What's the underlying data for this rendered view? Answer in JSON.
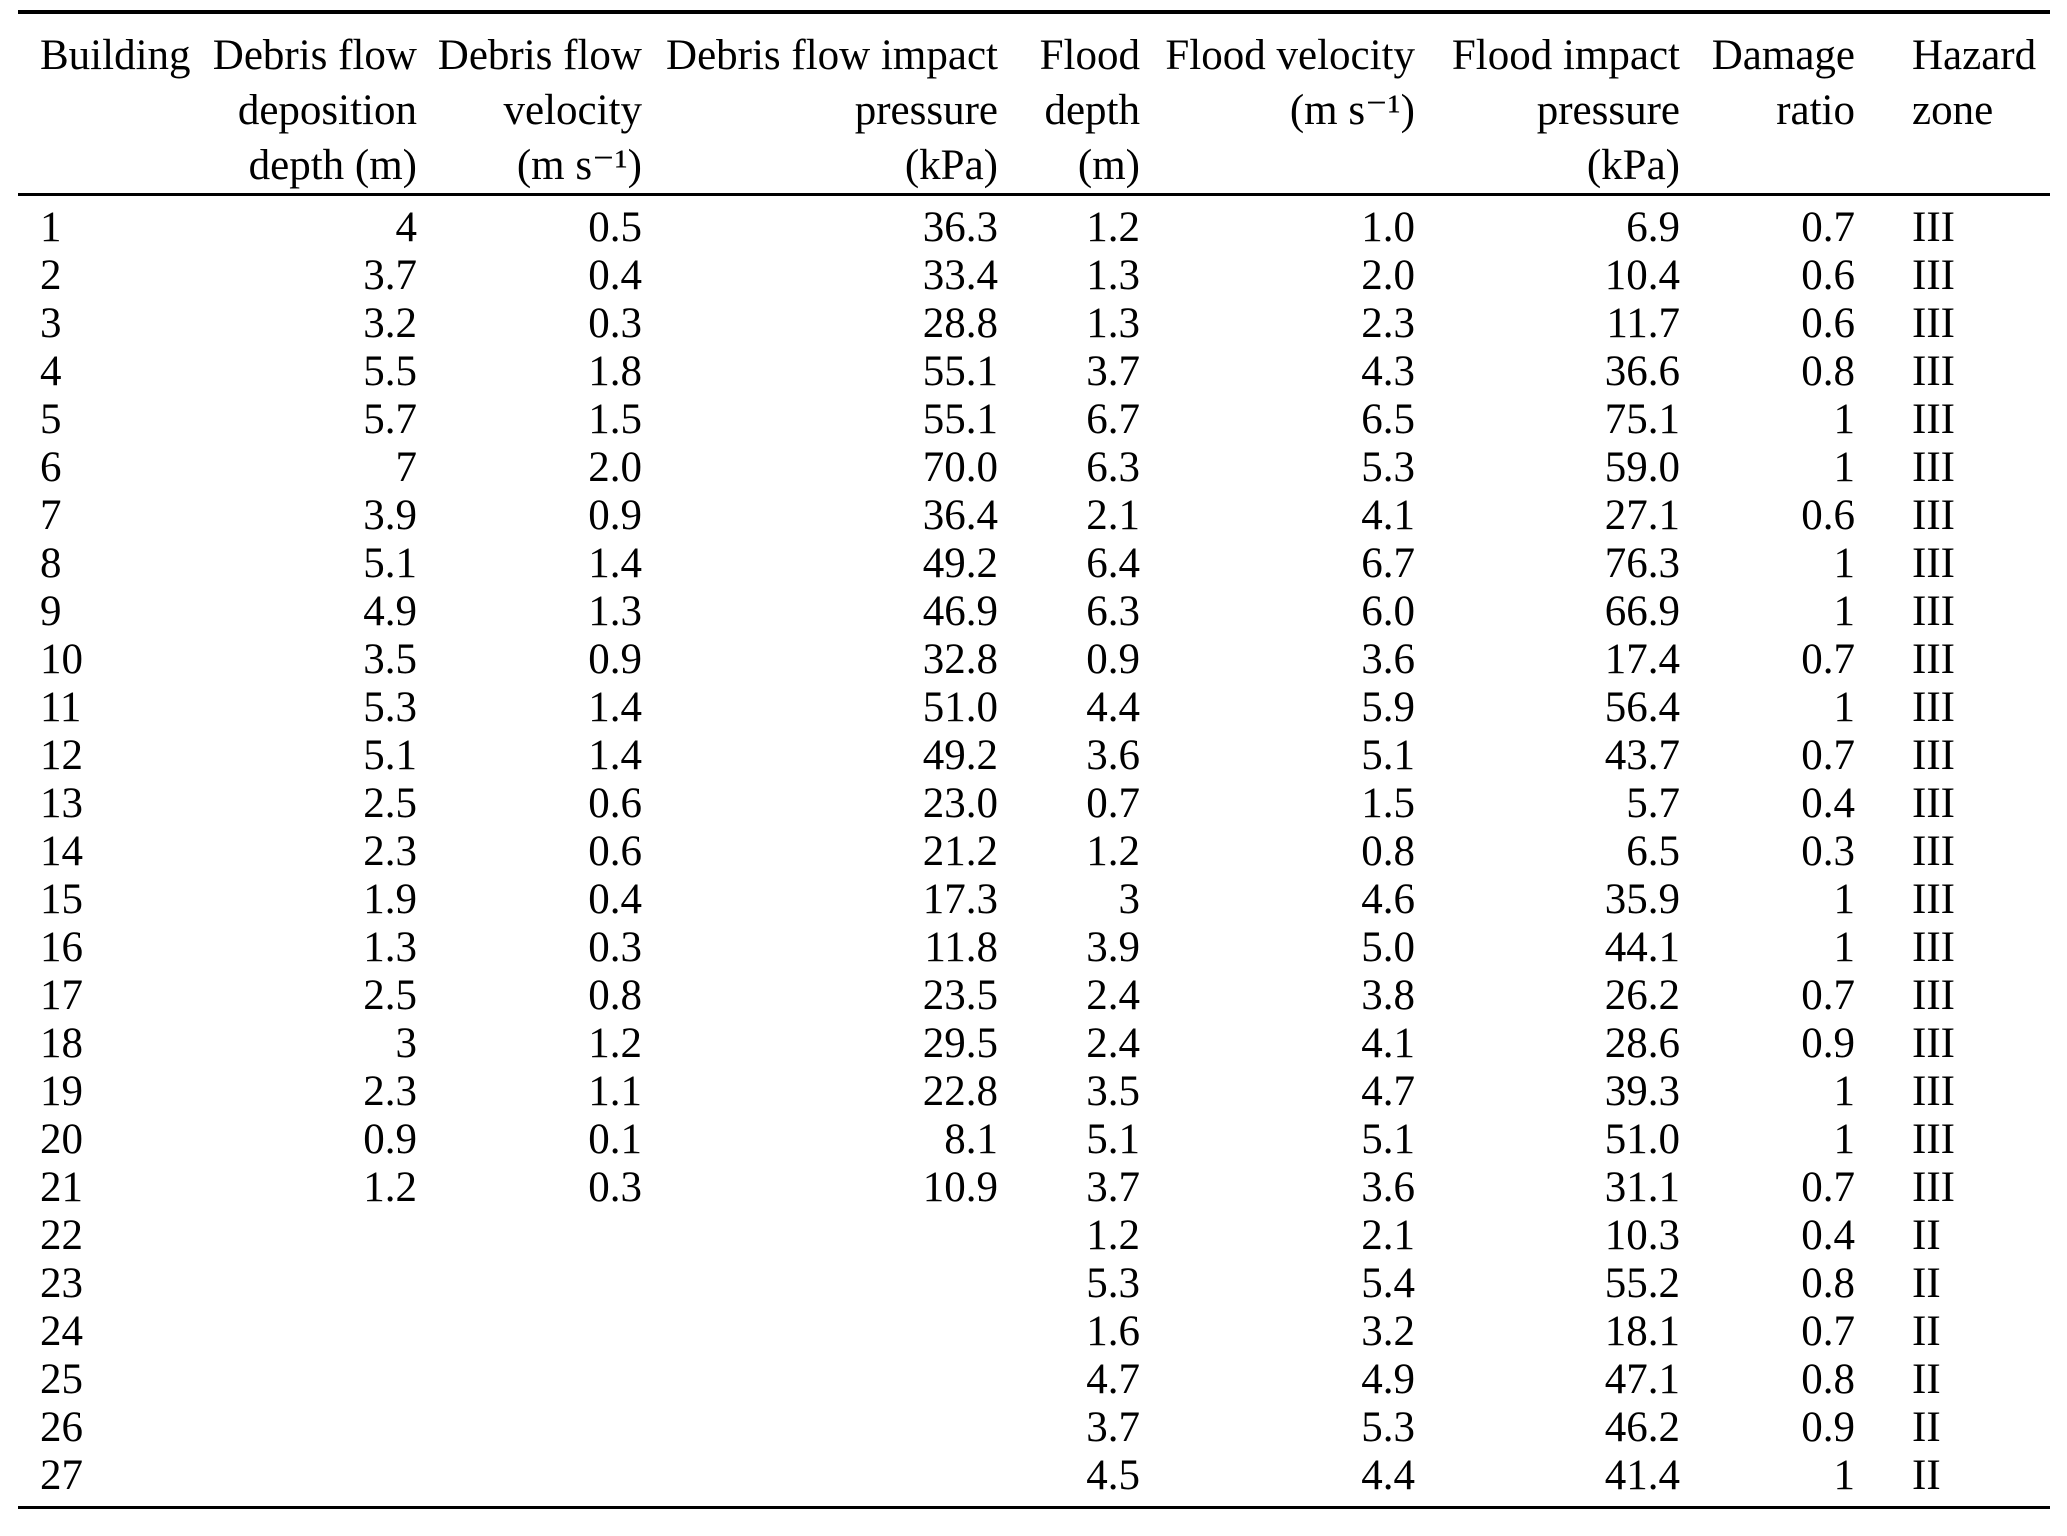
{
  "table": {
    "header": [
      {
        "align": "left",
        "lines": [
          "Building"
        ]
      },
      {
        "align": "right",
        "lines": [
          "Debris flow",
          "deposition",
          "depth (m)"
        ]
      },
      {
        "align": "right",
        "lines": [
          "Debris flow",
          "velocity",
          "(m s⁻¹)"
        ]
      },
      {
        "align": "right",
        "lines": [
          "Debris flow impact",
          "pressure",
          "(kPa)"
        ]
      },
      {
        "align": "right",
        "lines": [
          "Flood",
          "depth",
          "(m)"
        ]
      },
      {
        "align": "right",
        "lines": [
          "Flood velocity",
          "(m s⁻¹)"
        ]
      },
      {
        "align": "right",
        "lines": [
          "Flood impact",
          "pressure",
          "(kPa)"
        ]
      },
      {
        "align": "right",
        "lines": [
          "Damage",
          "ratio"
        ]
      },
      {
        "align": "left",
        "lines": [
          "Hazard",
          "zone"
        ]
      }
    ],
    "column_keys": [
      "building",
      "debris_flow_deposition_depth_m",
      "debris_flow_velocity_ms",
      "debris_flow_impact_pressure_kpa",
      "flood_depth_m",
      "flood_velocity_ms",
      "flood_impact_pressure_kpa",
      "damage_ratio",
      "hazard_zone"
    ],
    "rows": [
      [
        "1",
        "4",
        "0.5",
        "36.3",
        "1.2",
        "1.0",
        "6.9",
        "0.7",
        "III"
      ],
      [
        "2",
        "3.7",
        "0.4",
        "33.4",
        "1.3",
        "2.0",
        "10.4",
        "0.6",
        "III"
      ],
      [
        "3",
        "3.2",
        "0.3",
        "28.8",
        "1.3",
        "2.3",
        "11.7",
        "0.6",
        "III"
      ],
      [
        "4",
        "5.5",
        "1.8",
        "55.1",
        "3.7",
        "4.3",
        "36.6",
        "0.8",
        "III"
      ],
      [
        "5",
        "5.7",
        "1.5",
        "55.1",
        "6.7",
        "6.5",
        "75.1",
        "1",
        "III"
      ],
      [
        "6",
        "7",
        "2.0",
        "70.0",
        "6.3",
        "5.3",
        "59.0",
        "1",
        "III"
      ],
      [
        "7",
        "3.9",
        "0.9",
        "36.4",
        "2.1",
        "4.1",
        "27.1",
        "0.6",
        "III"
      ],
      [
        "8",
        "5.1",
        "1.4",
        "49.2",
        "6.4",
        "6.7",
        "76.3",
        "1",
        "III"
      ],
      [
        "9",
        "4.9",
        "1.3",
        "46.9",
        "6.3",
        "6.0",
        "66.9",
        "1",
        "III"
      ],
      [
        "10",
        "3.5",
        "0.9",
        "32.8",
        "0.9",
        "3.6",
        "17.4",
        "0.7",
        "III"
      ],
      [
        "11",
        "5.3",
        "1.4",
        "51.0",
        "4.4",
        "5.9",
        "56.4",
        "1",
        "III"
      ],
      [
        "12",
        "5.1",
        "1.4",
        "49.2",
        "3.6",
        "5.1",
        "43.7",
        "0.7",
        "III"
      ],
      [
        "13",
        "2.5",
        "0.6",
        "23.0",
        "0.7",
        "1.5",
        "5.7",
        "0.4",
        "III"
      ],
      [
        "14",
        "2.3",
        "0.6",
        "21.2",
        "1.2",
        "0.8",
        "6.5",
        "0.3",
        "III"
      ],
      [
        "15",
        "1.9",
        "0.4",
        "17.3",
        "3",
        "4.6",
        "35.9",
        "1",
        "III"
      ],
      [
        "16",
        "1.3",
        "0.3",
        "11.8",
        "3.9",
        "5.0",
        "44.1",
        "1",
        "III"
      ],
      [
        "17",
        "2.5",
        "0.8",
        "23.5",
        "2.4",
        "3.8",
        "26.2",
        "0.7",
        "III"
      ],
      [
        "18",
        "3",
        "1.2",
        "29.5",
        "2.4",
        "4.1",
        "28.6",
        "0.9",
        "III"
      ],
      [
        "19",
        "2.3",
        "1.1",
        "22.8",
        "3.5",
        "4.7",
        "39.3",
        "1",
        "III"
      ],
      [
        "20",
        "0.9",
        "0.1",
        "8.1",
        "5.1",
        "5.1",
        "51.0",
        "1",
        "III"
      ],
      [
        "21",
        "1.2",
        "0.3",
        "10.9",
        "3.7",
        "3.6",
        "31.1",
        "0.7",
        "III"
      ],
      [
        "22",
        "",
        "",
        "",
        "1.2",
        "2.1",
        "10.3",
        "0.4",
        "II"
      ],
      [
        "23",
        "",
        "",
        "",
        "5.3",
        "5.4",
        "55.2",
        "0.8",
        "II"
      ],
      [
        "24",
        "",
        "",
        "",
        "1.6",
        "3.2",
        "18.1",
        "0.7",
        "II"
      ],
      [
        "25",
        "",
        "",
        "",
        "4.7",
        "4.9",
        "47.1",
        "0.8",
        "II"
      ],
      [
        "26",
        "",
        "",
        "",
        "3.7",
        "5.3",
        "46.2",
        "0.9",
        "II"
      ],
      [
        "27",
        "",
        "",
        "",
        "4.5",
        "4.4",
        "41.4",
        "1",
        "II"
      ]
    ]
  }
}
